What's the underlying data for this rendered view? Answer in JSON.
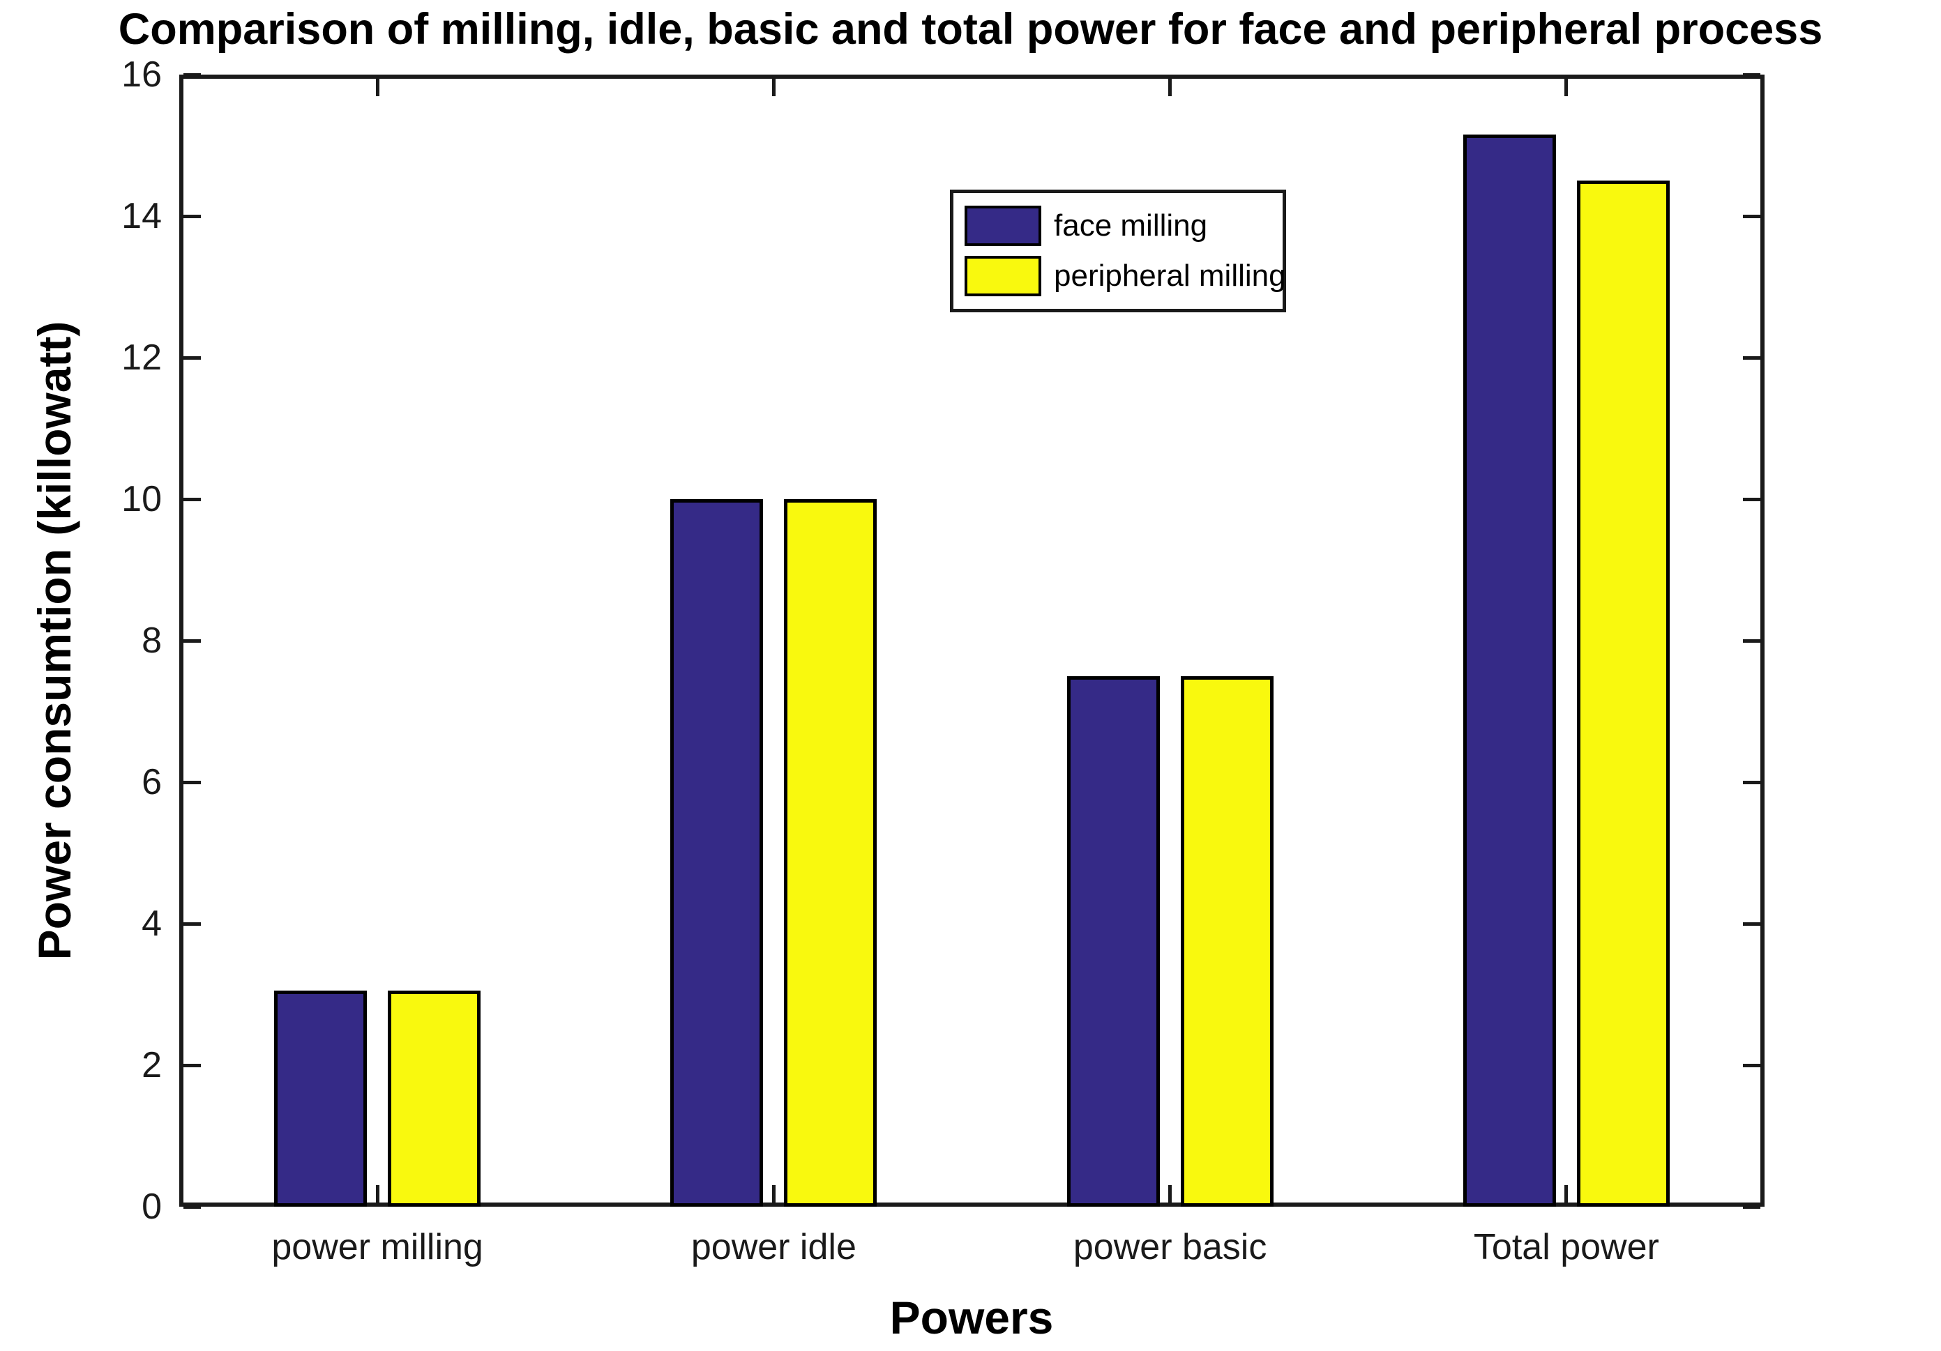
{
  "chart_data": {
    "type": "bar",
    "title": "Comparison of milling, idle, basic and total power for face and peripheral process",
    "xlabel": "Powers",
    "ylabel": "Power consumtion (killowatt)",
    "categories": [
      "power milling",
      "power idle",
      "power basic",
      "Total power"
    ],
    "series": [
      {
        "name": "face milling",
        "color": "#352A87",
        "values": [
          3.05,
          10,
          7.5,
          15.15
        ]
      },
      {
        "name": "peripheral milling",
        "color": "#F9F90E",
        "values": [
          3.05,
          10,
          7.5,
          14.5
        ]
      }
    ],
    "ylim": [
      0,
      16
    ],
    "ytick_step": 2,
    "ytick_labels": [
      "0",
      "2",
      "4",
      "6",
      "8",
      "10",
      "12",
      "14",
      "16"
    ],
    "grid": false,
    "legend_position": "inside-upper-center-right",
    "bar_edge_color": "#000000",
    "axis_color": "#1a1a1a"
  }
}
